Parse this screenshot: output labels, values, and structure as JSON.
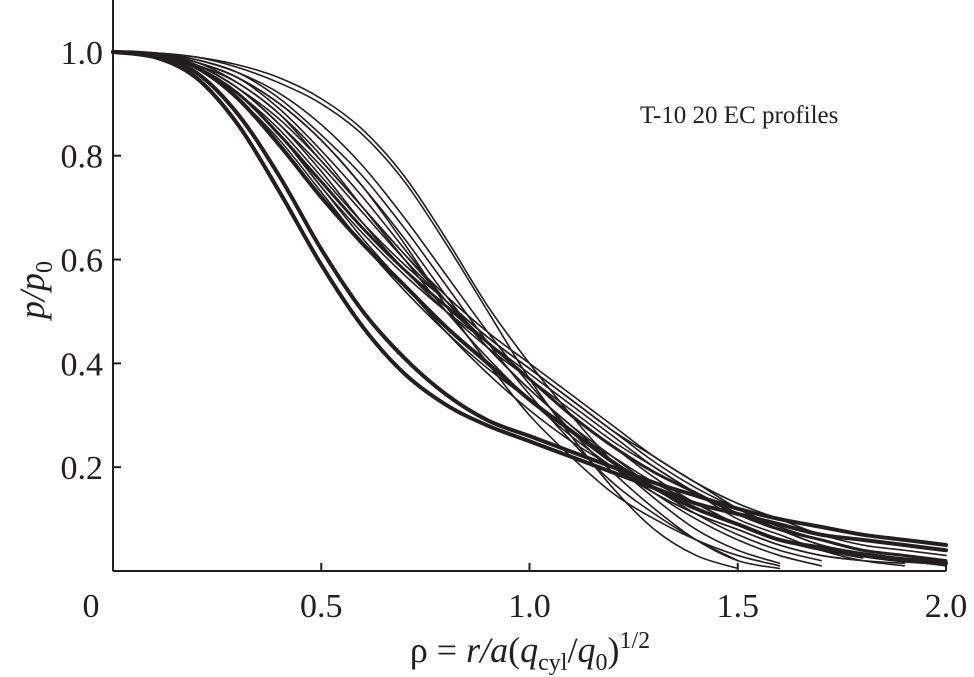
{
  "chart_data": {
    "type": "line",
    "annotation": "T-10 20 EC profiles",
    "xlabel": [
      "ρ = ",
      "r/a",
      "(",
      "q",
      "cyl",
      "/",
      "q",
      "0",
      ")",
      "1/2"
    ],
    "ylabel": [
      "p/p",
      "0"
    ],
    "x": [
      0,
      0.1,
      0.2,
      0.3,
      0.4,
      0.5,
      0.6,
      0.7,
      0.8,
      0.9,
      1.0,
      1.1,
      1.2,
      1.3,
      1.4,
      1.5,
      1.6,
      1.7,
      1.8,
      1.9,
      2.0
    ],
    "xlim": [
      0,
      2.0
    ],
    "xticks": [
      0,
      0.5,
      {
        "value": 1.0,
        "label": "1.0"
      },
      1.5,
      {
        "value": 2.0,
        "label": "2.0"
      }
    ],
    "ylim": [
      0,
      1.1
    ],
    "yticks": [
      0.2,
      0.4,
      0.6,
      0.8,
      {
        "value": 1.0,
        "label": "1.0"
      }
    ],
    "series": [
      {
        "color": "#231f20",
        "line_width": 4,
        "values": [
          1,
          0.99,
          0.96,
          0.88,
          0.76,
          0.62,
          0.5,
          0.41,
          0.34,
          0.29,
          0.26,
          0.23,
          0.2,
          0.17,
          0.145,
          0.12,
          0.1,
          0.085,
          0.07,
          0.06,
          0.05
        ]
      },
      {
        "color": "#231f20",
        "line_width": 4,
        "values": [
          1,
          0.99,
          0.95,
          0.86,
          0.73,
          0.59,
          0.47,
          0.38,
          0.32,
          0.28,
          0.25,
          0.22,
          0.19,
          0.16,
          0.13,
          0.11,
          0.09,
          0.07,
          0.06,
          0.05,
          0.04
        ]
      },
      {
        "color": "#231f20",
        "line_width": 4,
        "values": [
          1,
          0.995,
          0.97,
          0.91,
          0.82,
          0.72,
          0.63,
          0.55,
          0.47,
          0.4,
          0.33,
          0.27,
          0.21,
          0.16,
          0.12,
          0.09,
          0.06,
          0.045,
          0.03,
          0.02,
          0.015
        ]
      },
      {
        "color": "#231f20",
        "line_width": 1.6,
        "values": [
          1,
          0.995,
          0.97,
          0.92,
          0.84,
          0.74,
          0.64,
          0.55,
          0.46,
          0.38,
          0.31,
          0.25,
          0.2,
          0.15,
          0.11,
          0.08,
          0.05,
          0.03,
          0.02,
          null,
          null
        ]
      },
      {
        "color": "#231f20",
        "line_width": 1.6,
        "values": [
          1,
          0.998,
          0.99,
          0.97,
          0.94,
          0.9,
          0.84,
          0.75,
          0.63,
          0.5,
          0.37,
          0.26,
          0.16,
          0.08,
          0.03,
          0.005,
          null,
          null,
          null,
          null,
          null
        ]
      },
      {
        "color": "#231f20",
        "line_width": 1.6,
        "values": [
          1,
          0.998,
          0.985,
          0.96,
          0.92,
          0.86,
          0.78,
          0.68,
          0.57,
          0.46,
          0.36,
          0.27,
          0.19,
          0.12,
          0.06,
          0.02,
          0.005,
          null,
          null,
          null,
          null
        ]
      },
      {
        "color": "#231f20",
        "line_width": 1.6,
        "values": [
          1,
          0.997,
          0.98,
          0.95,
          0.9,
          0.83,
          0.74,
          0.64,
          0.53,
          0.43,
          0.35,
          0.28,
          0.21,
          0.15,
          0.1,
          0.06,
          0.03,
          0.01,
          null,
          null,
          null
        ]
      },
      {
        "color": "#231f20",
        "line_width": 1.6,
        "values": [
          1,
          0.998,
          0.99,
          0.975,
          0.95,
          0.91,
          0.85,
          0.76,
          0.64,
          0.51,
          0.4,
          0.3,
          0.21,
          0.14,
          0.08,
          0.04,
          0.015,
          null,
          null,
          null,
          null
        ]
      },
      {
        "color": "#231f20",
        "line_width": 1.6,
        "values": [
          1,
          0.997,
          0.98,
          0.94,
          0.88,
          0.79,
          0.7,
          0.61,
          0.53,
          0.46,
          0.4,
          0.34,
          0.28,
          0.22,
          0.17,
          0.12,
          0.08,
          0.05,
          0.03,
          0.02,
          0.01
        ]
      },
      {
        "color": "#231f20",
        "line_width": 1.6,
        "values": [
          1,
          0.996,
          0.975,
          0.93,
          0.86,
          0.77,
          0.67,
          0.58,
          0.5,
          0.43,
          0.37,
          0.31,
          0.25,
          0.2,
          0.15,
          0.11,
          0.08,
          0.05,
          0.035,
          0.025,
          0.02
        ]
      },
      {
        "color": "#231f20",
        "line_width": 1.6,
        "values": [
          1,
          0.996,
          0.97,
          0.92,
          0.84,
          0.74,
          0.65,
          0.57,
          0.5,
          0.44,
          0.38,
          0.32,
          0.26,
          0.2,
          0.15,
          0.1,
          0.07,
          0.04,
          0.02,
          0.01,
          null
        ]
      },
      {
        "color": "#231f20",
        "line_width": 1.6,
        "values": [
          1,
          0.995,
          0.97,
          0.91,
          0.83,
          0.73,
          0.63,
          0.54,
          0.46,
          0.39,
          0.33,
          0.27,
          0.22,
          0.17,
          0.13,
          0.09,
          0.06,
          0.04,
          0.025,
          null,
          null
        ]
      },
      {
        "color": "#231f20",
        "line_width": 1.6,
        "values": [
          1,
          0.997,
          0.98,
          0.95,
          0.89,
          0.81,
          0.72,
          0.62,
          0.52,
          0.43,
          0.35,
          0.28,
          0.22,
          0.16,
          0.11,
          0.07,
          0.04,
          0.02,
          null,
          null,
          null
        ]
      },
      {
        "color": "#231f20",
        "line_width": 1.6,
        "values": [
          1,
          0.998,
          0.985,
          0.96,
          0.91,
          0.84,
          0.76,
          0.66,
          0.55,
          0.44,
          0.34,
          0.25,
          0.17,
          0.11,
          0.06,
          0.02,
          null,
          null,
          null,
          null,
          null
        ]
      },
      {
        "color": "#231f20",
        "line_width": 1.6,
        "values": [
          1,
          0.996,
          0.975,
          0.93,
          0.87,
          0.79,
          0.7,
          0.61,
          0.52,
          0.44,
          0.37,
          0.3,
          0.24,
          0.18,
          0.13,
          0.09,
          0.06,
          0.04,
          0.03,
          0.02,
          0.015
        ]
      },
      {
        "color": "#231f20",
        "line_width": 3,
        "values": [
          1,
          0.995,
          0.97,
          0.92,
          0.84,
          0.75,
          0.66,
          0.58,
          0.51,
          0.44,
          0.37,
          0.3,
          0.24,
          0.19,
          0.15,
          0.11,
          0.08,
          0.06,
          0.04,
          0.03,
          0.02
        ]
      },
      {
        "color": "#231f20",
        "line_width": 1.6,
        "values": [
          1,
          0.996,
          0.975,
          0.94,
          0.88,
          0.8,
          0.7,
          0.6,
          0.5,
          0.41,
          0.33,
          0.26,
          0.2,
          0.15,
          0.11,
          0.08,
          0.05,
          0.03,
          0.02,
          0.015,
          null
        ]
      },
      {
        "color": "#231f20",
        "line_width": 1.6,
        "values": [
          1,
          0.997,
          0.98,
          0.95,
          0.9,
          0.83,
          0.74,
          0.63,
          0.51,
          0.4,
          0.3,
          0.22,
          0.15,
          0.1,
          0.06,
          0.03,
          0.01,
          null,
          null,
          null,
          null
        ]
      },
      {
        "color": "#231f20",
        "line_width": 1.6,
        "values": [
          1,
          0.996,
          0.975,
          0.93,
          0.86,
          0.78,
          0.69,
          0.6,
          0.52,
          0.45,
          0.39,
          0.33,
          0.27,
          0.21,
          0.16,
          0.12,
          0.085,
          0.06,
          0.04,
          0.03,
          0.02
        ]
      },
      {
        "color": "#231f20",
        "line_width": 1.6,
        "values": [
          1,
          0.995,
          0.97,
          0.92,
          0.85,
          0.76,
          0.67,
          0.59,
          0.52,
          0.45,
          0.39,
          0.33,
          0.27,
          0.22,
          0.17,
          0.13,
          0.1,
          0.07,
          0.05,
          0.04,
          0.03
        ]
      }
    ]
  }
}
